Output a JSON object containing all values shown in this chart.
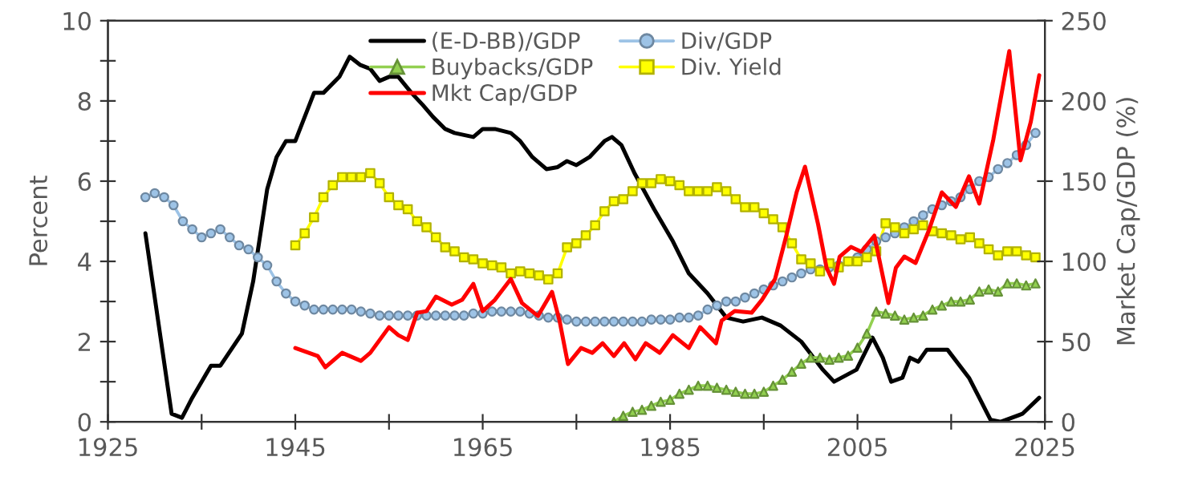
{
  "chart_data": {
    "type": "line",
    "ylabel": "Percent",
    "y2label": "Market Cap/GDP (%)",
    "xlim": [
      1925,
      2025
    ],
    "xticks": [
      1925,
      {
        "value": 1935,
        "label": null
      },
      1945,
      {
        "value": 1955,
        "label": null
      },
      1965,
      {
        "value": 1975,
        "label": null
      },
      1985,
      {
        "value": 1995,
        "label": null
      },
      2005,
      {
        "value": 2015,
        "label": null
      },
      2025
    ],
    "ylim": [
      0,
      10
    ],
    "yticks": [
      0,
      {
        "value": 1,
        "label": null
      },
      2,
      {
        "value": 3,
        "label": null
      },
      4,
      {
        "value": 5,
        "label": null
      },
      6,
      {
        "value": 7,
        "label": null
      },
      8,
      {
        "value": 9,
        "label": null
      },
      10
    ],
    "y2lim": [
      0,
      250
    ],
    "y2ticks": [
      0,
      50,
      100,
      150,
      200,
      250
    ],
    "grid": false,
    "legend": "top",
    "series": [
      {
        "name": "(E-D-BB)/GDP",
        "color": "#000000",
        "marker": "none",
        "x": [
          1929,
          1931.8,
          1932.9,
          1934,
          1935,
          1936,
          1937,
          1939.3,
          1940.5,
          1942,
          1943,
          1944,
          1945,
          1946,
          1947,
          1948,
          1949.7,
          1950.8,
          1951.9,
          1953,
          1954,
          1955,
          1956,
          1957.4,
          1958.6,
          1959.7,
          1961,
          1962,
          1964,
          1965,
          1966.3,
          1968,
          1969,
          1970.3,
          1971.8,
          1973,
          1974,
          1975,
          1976.4,
          1978,
          1978.8,
          1979.8,
          1981.2,
          1983.3,
          1985.3,
          1987,
          1989,
          1991,
          1992.8,
          1994.8,
          1996.8,
          1999,
          2001.3,
          2002.5,
          2004.9,
          2006.6,
          2007.7,
          2008.6,
          2009.8,
          2010.6,
          2011.5,
          2012.4,
          2014.6,
          2016.9,
          2018,
          2019.2,
          2020.3,
          2022.6,
          2024.4
        ],
        "values": [
          4.7,
          0.2,
          0.1,
          0.6,
          1.0,
          1.4,
          1.4,
          2.2,
          3.5,
          5.8,
          6.6,
          7.0,
          7.0,
          7.6,
          8.2,
          8.2,
          8.6,
          9.1,
          8.9,
          8.8,
          8.5,
          8.6,
          8.6,
          8.2,
          7.9,
          7.6,
          7.3,
          7.2,
          7.1,
          7.3,
          7.3,
          7.2,
          7.0,
          6.6,
          6.3,
          6.35,
          6.5,
          6.4,
          6.6,
          7.0,
          7.1,
          6.9,
          6.2,
          5.3,
          4.5,
          3.7,
          3.2,
          2.6,
          2.5,
          2.6,
          2.4,
          2.0,
          1.3,
          1.0,
          1.3,
          2.1,
          1.6,
          1.0,
          1.1,
          1.6,
          1.5,
          1.8,
          1.8,
          1.1,
          0.6,
          0.05,
          0,
          0.2,
          0.6
        ]
      },
      {
        "name": "Div/GDP",
        "color": "#9dc3e6",
        "marker": "circle",
        "x": [
          1929,
          1930,
          1931,
          1932,
          1933,
          1934,
          1935,
          1936,
          1937,
          1938,
          1939,
          1940,
          1941,
          1942,
          1943,
          1944,
          1945,
          1946,
          1947,
          1948,
          1949,
          1950,
          1951,
          1952,
          1953,
          1954,
          1955,
          1956,
          1957,
          1958,
          1959,
          1960,
          1961,
          1962,
          1963,
          1964,
          1965,
          1966,
          1967,
          1968,
          1969,
          1970,
          1971,
          1972,
          1973,
          1974,
          1975,
          1976,
          1977,
          1978,
          1979,
          1980,
          1981,
          1982,
          1983,
          1984,
          1985,
          1986,
          1987,
          1988,
          1989,
          1990,
          1991,
          1992,
          1993,
          1994,
          1995,
          1996,
          1997,
          1998,
          1999,
          2000,
          2001,
          2002,
          2003,
          2004,
          2005,
          2006,
          2007,
          2008,
          2009,
          2010,
          2011,
          2012,
          2013,
          2014,
          2015,
          2016,
          2017,
          2018,
          2019,
          2020,
          2021,
          2022,
          2023,
          2024
        ],
        "values": [
          5.6,
          5.7,
          5.6,
          5.4,
          5.0,
          4.8,
          4.6,
          4.7,
          4.8,
          4.6,
          4.4,
          4.3,
          4.1,
          3.9,
          3.5,
          3.2,
          3.0,
          2.9,
          2.8,
          2.8,
          2.8,
          2.8,
          2.8,
          2.75,
          2.7,
          2.65,
          2.65,
          2.65,
          2.65,
          2.65,
          2.65,
          2.65,
          2.65,
          2.65,
          2.65,
          2.7,
          2.7,
          2.75,
          2.75,
          2.75,
          2.75,
          2.7,
          2.65,
          2.6,
          2.6,
          2.55,
          2.5,
          2.5,
          2.5,
          2.5,
          2.5,
          2.5,
          2.5,
          2.5,
          2.55,
          2.55,
          2.55,
          2.6,
          2.6,
          2.65,
          2.8,
          2.9,
          3.0,
          3.0,
          3.1,
          3.2,
          3.3,
          3.4,
          3.5,
          3.6,
          3.7,
          3.8,
          3.8,
          3.85,
          3.9,
          4.0,
          4.1,
          4.3,
          4.5,
          4.6,
          4.7,
          4.85,
          5.0,
          5.15,
          5.3,
          5.4,
          5.5,
          5.6,
          5.8,
          6.0,
          6.1,
          6.3,
          6.45,
          6.65,
          6.9,
          7.2
        ]
      },
      {
        "name": "Buybacks/GDP",
        "color": "#92d050",
        "marker": "triangle",
        "x": [
          1979,
          1980,
          1981,
          1982,
          1983,
          1984,
          1985,
          1986,
          1987,
          1988,
          1989,
          1990,
          1991,
          1992,
          1993,
          1994,
          1995,
          1996,
          1997,
          1998,
          1999,
          2000,
          2001,
          2002,
          2003,
          2004,
          2005,
          2006,
          2007,
          2008,
          2009,
          2010,
          2011,
          2012,
          2013,
          2014,
          2015,
          2016,
          2017,
          2018,
          2019,
          2020,
          2021,
          2022,
          2023,
          2024
        ],
        "values": [
          0,
          0.15,
          0.25,
          0.3,
          0.4,
          0.5,
          0.55,
          0.7,
          0.8,
          0.9,
          0.9,
          0.85,
          0.8,
          0.75,
          0.7,
          0.7,
          0.75,
          0.9,
          1.05,
          1.25,
          1.45,
          1.6,
          1.6,
          1.55,
          1.6,
          1.65,
          1.85,
          2.2,
          2.75,
          2.7,
          2.65,
          2.55,
          2.6,
          2.65,
          2.8,
          2.9,
          3.0,
          3.0,
          3.05,
          3.25,
          3.3,
          3.25,
          3.45,
          3.45,
          3.4,
          3.45
        ]
      },
      {
        "name": "Div. Yield",
        "color": "#ffff00",
        "marker": "square",
        "x": [
          1945,
          1946,
          1947,
          1948,
          1949,
          1950,
          1951,
          1952,
          1953,
          1954,
          1955,
          1956,
          1957,
          1958,
          1959,
          1960,
          1961,
          1962,
          1963,
          1964,
          1965,
          1966,
          1967,
          1968,
          1969,
          1970,
          1971,
          1972,
          1973,
          1974,
          1975,
          1976,
          1977,
          1978,
          1979,
          1980,
          1981,
          1982,
          1983,
          1984,
          1985,
          1986,
          1987,
          1988,
          1989,
          1990,
          1991,
          1992,
          1993,
          1994,
          1995,
          1996,
          1997,
          1998,
          1999,
          2000,
          2001,
          2002,
          2003,
          2004,
          2005,
          2006,
          2007,
          2008,
          2009,
          2010,
          2011,
          2012,
          2013,
          2014,
          2015,
          2016,
          2017,
          2018,
          2019,
          2020,
          2021,
          2022,
          2023,
          2024
        ],
        "values": [
          4.4,
          4.7,
          5.1,
          5.6,
          5.9,
          6.1,
          6.1,
          6.1,
          6.2,
          5.95,
          5.6,
          5.4,
          5.3,
          5.0,
          4.85,
          4.6,
          4.35,
          4.25,
          4.1,
          4.05,
          3.95,
          3.9,
          3.85,
          3.7,
          3.75,
          3.7,
          3.65,
          3.55,
          3.7,
          4.35,
          4.45,
          4.65,
          4.9,
          5.25,
          5.5,
          5.55,
          5.75,
          5.95,
          5.95,
          6.05,
          6.0,
          5.9,
          5.75,
          5.75,
          5.75,
          5.85,
          5.75,
          5.55,
          5.35,
          5.35,
          5.2,
          5.05,
          4.85,
          4.45,
          4.05,
          3.95,
          3.75,
          3.95,
          3.85,
          4.0,
          4.0,
          4.1,
          4.25,
          4.95,
          4.85,
          4.7,
          4.8,
          4.9,
          4.75,
          4.7,
          4.65,
          4.55,
          4.6,
          4.45,
          4.3,
          4.15,
          4.25,
          4.25,
          4.15,
          4.1
        ]
      },
      {
        "name": "Mkt Cap/GDP",
        "color": "#ff0000",
        "marker": "none",
        "axis": "y2",
        "x": [
          1945,
          1947.4,
          1948.2,
          1950,
          1952,
          1953,
          1955,
          1956,
          1957,
          1958,
          1959,
          1960,
          1961.7,
          1962.8,
          1964,
          1965,
          1966.3,
          1968,
          1969.2,
          1970.9,
          1972.4,
          1973.2,
          1974.1,
          1975.5,
          1976.7,
          1977.8,
          1979,
          1980.1,
          1981.3,
          1982.4,
          1983.9,
          1985.3,
          1987,
          1988.2,
          1989.9,
          1990.5,
          1991.9,
          1993.7,
          1994.8,
          1996.2,
          1997.4,
          1998.5,
          1999.4,
          2000.8,
          2001.7,
          2002.5,
          2003.1,
          2004.3,
          2005.4,
          2006.8,
          2008.3,
          2009.1,
          2010,
          2011.2,
          2012.6,
          2014,
          2015.5,
          2016.9,
          2018,
          2019.5,
          2021.2,
          2022.4,
          2023.5,
          2024.4
        ],
        "values": [
          46,
          41,
          34,
          43,
          38,
          43,
          59,
          54,
          51,
          68,
          69,
          78,
          73,
          76,
          86,
          69,
          76,
          89,
          74,
          66,
          81,
          63,
          36,
          46,
          43,
          49,
          41,
          49,
          39,
          49,
          43,
          54,
          46,
          59,
          49,
          63,
          69,
          68,
          76,
          89,
          116,
          143,
          159,
          123,
          96,
          86,
          103,
          109,
          106,
          116,
          74,
          96,
          103,
          99,
          119,
          143,
          134,
          153,
          136,
          176,
          231,
          163,
          187,
          216
        ]
      }
    ]
  }
}
